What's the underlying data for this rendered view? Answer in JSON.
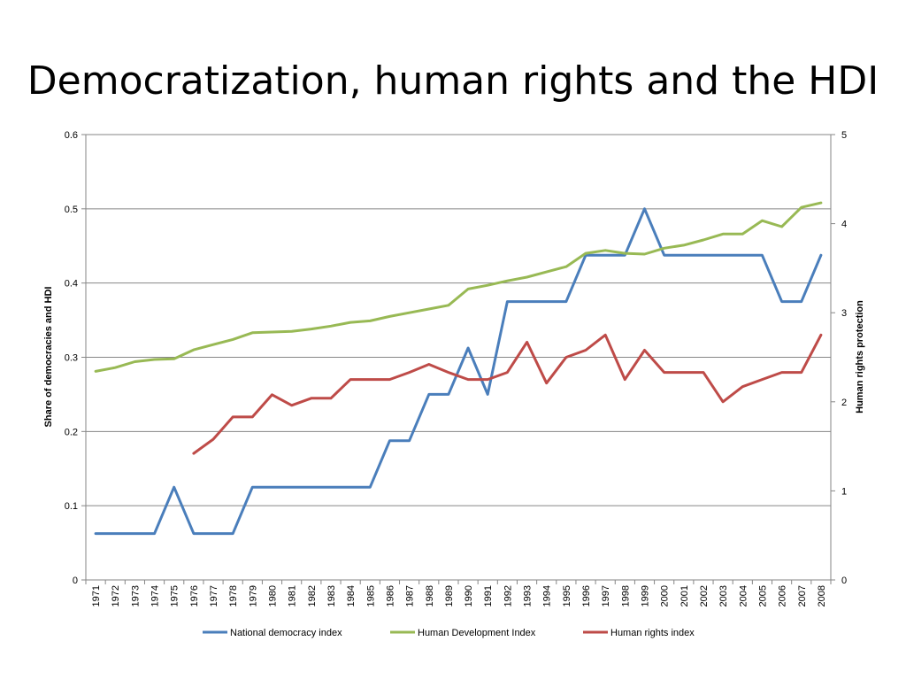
{
  "slide": {
    "title": "Democratization, human rights and the HDI"
  },
  "chart_data": {
    "type": "line",
    "title": "",
    "ylabel": "Share of democracies and HDI",
    "y2label": "Human rights protection",
    "ylim": [
      0,
      0.6
    ],
    "y2lim": [
      0,
      5
    ],
    "yticks": [
      "0",
      "0.1",
      "0.2",
      "0.3",
      "0.4",
      "0.5",
      "0.6"
    ],
    "y2ticks": [
      "0",
      "1",
      "2",
      "3",
      "4",
      "5"
    ],
    "x": [
      "1971",
      "1972",
      "1973",
      "1974",
      "1975",
      "1976",
      "1977",
      "1978",
      "1979",
      "1980",
      "1981",
      "1982",
      "1983",
      "1984",
      "1985",
      "1986",
      "1987",
      "1988",
      "1989",
      "1990",
      "1991",
      "1992",
      "1993",
      "1994",
      "1995",
      "1996",
      "1997",
      "1998",
      "1999",
      "2000",
      "2001",
      "2002",
      "2003",
      "2004",
      "2005",
      "2006",
      "2007",
      "2008"
    ],
    "grid": true,
    "legend_position": "bottom",
    "series": [
      {
        "name": "National democracy index",
        "axis": "left",
        "color": "#4a7ebb",
        "values": [
          0.0625,
          0.0625,
          0.0625,
          0.0625,
          0.125,
          0.0625,
          0.0625,
          0.0625,
          0.125,
          0.125,
          0.125,
          0.125,
          0.125,
          0.125,
          0.125,
          0.1875,
          0.1875,
          0.25,
          0.25,
          0.3125,
          0.25,
          0.375,
          0.375,
          0.375,
          0.375,
          0.4375,
          0.4375,
          0.4375,
          0.5,
          0.4375,
          0.4375,
          0.4375,
          0.4375,
          0.4375,
          0.4375,
          0.375,
          0.375,
          0.4375
        ]
      },
      {
        "name": "Human Development Index",
        "axis": "left",
        "color": "#98b954",
        "values": [
          0.281,
          0.286,
          0.294,
          0.297,
          0.298,
          0.31,
          0.317,
          0.324,
          0.333,
          0.334,
          0.335,
          0.338,
          0.342,
          0.347,
          0.349,
          0.355,
          0.36,
          0.365,
          0.37,
          0.392,
          0.397,
          0.403,
          0.408,
          0.415,
          0.422,
          0.44,
          0.444,
          0.44,
          0.439,
          0.447,
          0.451,
          0.458,
          0.466,
          0.466,
          0.484,
          0.476,
          0.502,
          0.508
        ]
      },
      {
        "name": "Human rights index",
        "axis": "right",
        "color": "#be4b48",
        "values": [
          null,
          null,
          null,
          null,
          null,
          1.42,
          1.58,
          1.83,
          1.83,
          2.08,
          1.96,
          2.04,
          2.04,
          2.25,
          2.25,
          2.25,
          2.33,
          2.42,
          2.33,
          2.25,
          2.25,
          2.33,
          2.67,
          2.21,
          2.5,
          2.58,
          2.75,
          2.25,
          2.58,
          2.33,
          2.33,
          2.33,
          2.0,
          2.17,
          2.25,
          2.33,
          2.33,
          2.75
        ]
      }
    ]
  }
}
